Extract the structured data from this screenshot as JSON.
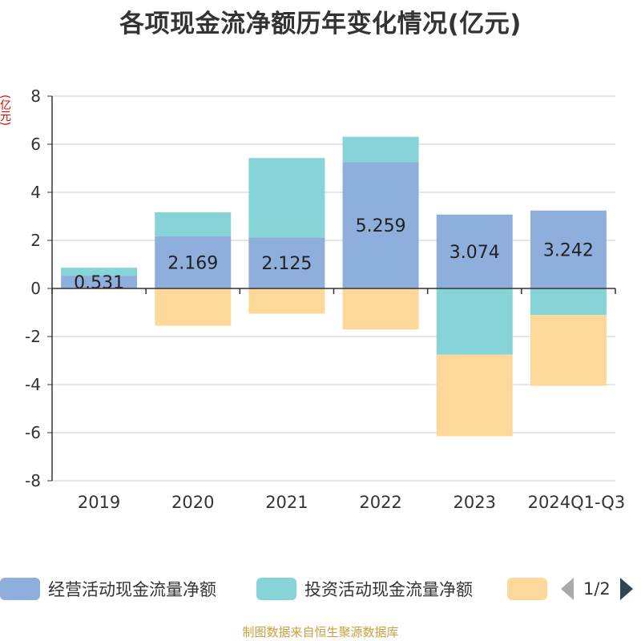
{
  "chart_data": {
    "type": "bar",
    "stacked": true,
    "title": "各项现金流净额历年变化情况(亿元)",
    "ylabel": "(亿元)",
    "xlabel": "",
    "ylim": [
      -8,
      8
    ],
    "yticks": [
      8,
      6,
      4,
      2,
      0,
      -2,
      -4,
      -6,
      -8
    ],
    "categories": [
      "2019",
      "2020",
      "2021",
      "2022",
      "2023",
      "2024Q1-Q3"
    ],
    "series": [
      {
        "name": "经营活动现金流量净额",
        "color": "#8eaedb",
        "values": [
          0.531,
          2.169,
          2.125,
          5.259,
          3.074,
          3.242
        ],
        "labels": [
          "0.531",
          "2.169",
          "2.125",
          "5.259",
          "3.074",
          "3.242"
        ]
      },
      {
        "name": "投资活动现金流量净额",
        "color": "#86d4d8",
        "values": [
          0.33,
          1.0,
          3.3,
          1.05,
          -2.75,
          -1.1
        ]
      },
      {
        "name": "",
        "color": "#fdd898",
        "values": [
          0,
          -1.55,
          -1.05,
          -1.7,
          -3.4,
          -2.95
        ]
      }
    ],
    "legend_position": "bottom"
  },
  "legend": {
    "items": [
      {
        "label": "经营活动现金流量净额",
        "color": "#8eaedb"
      },
      {
        "label": "投资活动现金流量净额",
        "color": "#86d4d8"
      },
      {
        "label": "",
        "color": "#fdd898"
      }
    ],
    "page": "1/2"
  },
  "footer": {
    "source": "制图数据来自恒生聚源数据库"
  }
}
